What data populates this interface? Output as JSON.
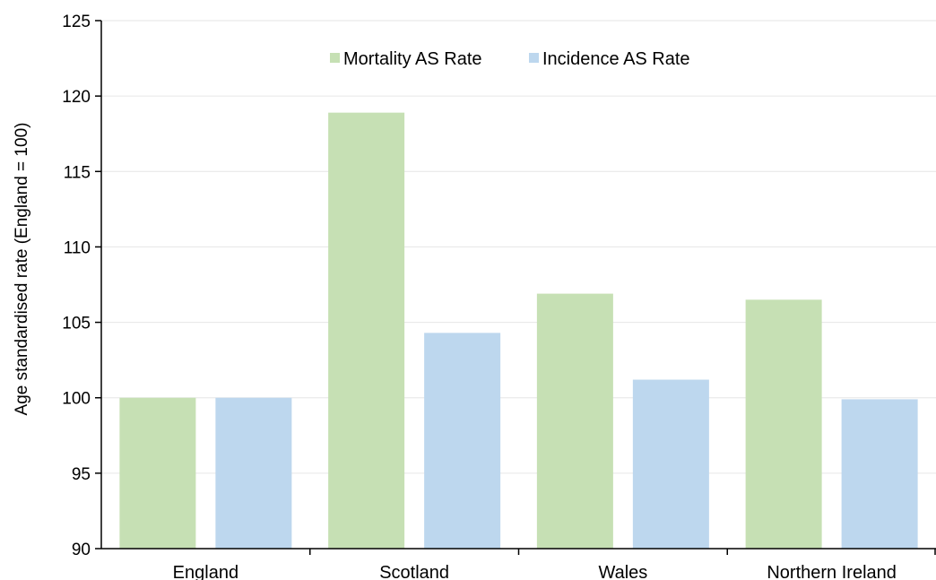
{
  "chart_data": {
    "type": "bar",
    "categories": [
      "England",
      "Scotland",
      "Wales",
      "Northern Ireland"
    ],
    "series": [
      {
        "name": "Mortality AS Rate",
        "values": [
          100,
          118.9,
          106.9,
          106.5
        ],
        "color": "#c6e0b4"
      },
      {
        "name": "Incidence AS Rate",
        "values": [
          100,
          104.3,
          101.2,
          99.9
        ],
        "color": "#bdd7ee"
      }
    ],
    "title": "",
    "xlabel": "",
    "ylabel": "Age standardised rate (England = 100)",
    "ylim": [
      90,
      125
    ],
    "yticks": [
      90,
      95,
      100,
      105,
      110,
      115,
      120,
      125
    ],
    "grid": true,
    "legend_position": "top-center"
  }
}
